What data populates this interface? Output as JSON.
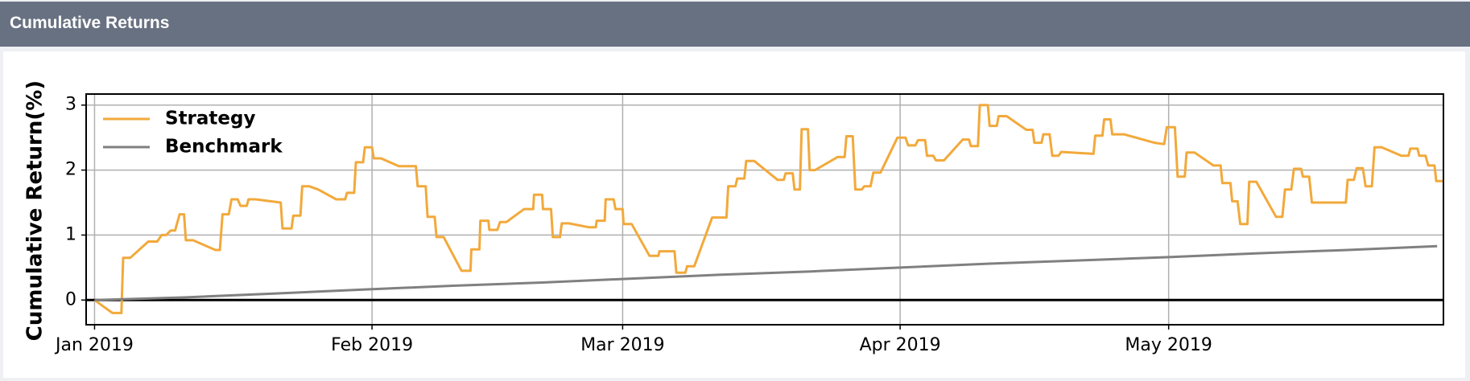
{
  "chart_data": {
    "type": "line",
    "title": "Cumulative Returns",
    "y_label": "Cumulative Return(%)",
    "xlim": [
      -0.94,
      150.7
    ],
    "ylim": [
      -0.38,
      3.17
    ],
    "xticks": [
      {
        "value": 0,
        "label": "Jan 2019"
      },
      {
        "value": 31,
        "label": "Feb 2019"
      },
      {
        "value": 59,
        "label": "Mar 2019"
      },
      {
        "value": 90,
        "label": "Apr 2019"
      },
      {
        "value": 120,
        "label": "May 2019"
      }
    ],
    "yticks": [
      0,
      1,
      2,
      3
    ],
    "grid": true,
    "hline": 0,
    "legend": "upper-left",
    "series": [
      {
        "name": "Strategy",
        "color": "#f2a93b",
        "x": [
          0,
          1,
          2,
          3,
          3.2,
          4,
          6,
          7,
          7.5,
          8,
          8.5,
          9,
          9.5,
          10,
          10.2,
          11,
          13.5,
          14,
          14.3,
          15,
          15.3,
          16,
          16.3,
          17,
          17.2,
          18,
          20.8,
          21,
          22,
          22.2,
          23,
          23.2,
          24,
          25,
          27,
          28,
          28.2,
          29,
          29.2,
          30,
          30.2,
          31,
          31.2,
          32,
          34,
          35.9,
          36.1,
          37,
          37.2,
          38,
          38.2,
          39,
          41,
          42,
          42.1,
          43,
          43.1,
          44,
          44.1,
          45,
          45.3,
          46,
          48,
          49,
          49.1,
          50,
          50.1,
          51,
          51.2,
          52,
          52.2,
          53,
          55.2,
          56,
          56.1,
          57,
          57.1,
          58,
          58.2,
          59,
          59.1,
          60,
          62,
          63,
          63.1,
          64,
          64.8,
          65,
          66,
          66.2,
          67,
          69,
          70.6,
          70.8,
          71.6,
          71.8,
          72.6,
          72.8,
          73.7,
          76.3,
          77,
          77.2,
          78,
          78.2,
          78.8,
          79,
          79.7,
          79.9,
          80.5,
          83,
          83.8,
          84,
          84.7,
          85,
          85.7,
          86,
          86.7,
          87,
          87.8,
          89.7,
          90.6,
          90.9,
          91.7,
          92,
          92.8,
          93,
          93.7,
          94,
          94.9,
          97,
          97.7,
          97.9,
          98.7,
          98.9,
          99.8,
          100,
          100.8,
          101,
          101.9,
          104.1,
          104.8,
          105,
          105.8,
          106,
          106.7,
          107,
          107.7,
          108,
          111.6,
          111.8,
          112.6,
          112.8,
          113.5,
          113.7,
          115,
          118.4,
          119.5,
          119.8,
          120.7,
          121,
          121.8,
          122,
          122.9,
          125,
          125.8,
          126,
          126.9,
          127.1,
          127.7,
          128,
          128.8,
          129,
          129.8,
          132,
          132.7,
          133,
          133.7,
          134,
          134.8,
          135,
          135.7,
          136,
          139.8,
          140,
          140.7,
          141,
          141.7,
          142,
          142.7,
          143,
          143.8,
          146,
          146.8,
          147,
          147.8,
          148,
          148.7,
          149,
          149.7,
          149.9,
          150.7
        ],
        "values": [
          0,
          -0.1,
          -0.2,
          -0.2,
          0.65,
          0.65,
          0.9,
          0.9,
          1.0,
          1.0,
          1.07,
          1.07,
          1.32,
          1.32,
          0.92,
          0.92,
          0.77,
          0.77,
          1.32,
          1.32,
          1.55,
          1.55,
          1.45,
          1.45,
          1.55,
          1.55,
          1.5,
          1.1,
          1.1,
          1.3,
          1.3,
          1.75,
          1.75,
          1.7,
          1.55,
          1.55,
          1.65,
          1.65,
          2.12,
          2.12,
          2.35,
          2.35,
          2.18,
          2.18,
          2.06,
          2.06,
          1.75,
          1.75,
          1.28,
          1.28,
          0.97,
          0.97,
          0.45,
          0.45,
          0.78,
          0.78,
          1.22,
          1.22,
          1.08,
          1.08,
          1.2,
          1.2,
          1.4,
          1.4,
          1.62,
          1.62,
          1.4,
          1.4,
          0.97,
          0.97,
          1.18,
          1.18,
          1.12,
          1.12,
          1.22,
          1.22,
          1.55,
          1.55,
          1.4,
          1.4,
          1.17,
          1.17,
          0.68,
          0.68,
          0.75,
          0.75,
          0.75,
          0.42,
          0.42,
          0.52,
          0.52,
          1.27,
          1.27,
          1.75,
          1.75,
          1.87,
          1.87,
          2.14,
          2.14,
          1.85,
          1.85,
          1.95,
          1.95,
          1.7,
          1.7,
          2.63,
          2.63,
          2.0,
          2.0,
          2.2,
          2.2,
          2.52,
          2.52,
          1.7,
          1.7,
          1.75,
          1.75,
          1.96,
          1.96,
          2.5,
          2.5,
          2.38,
          2.38,
          2.46,
          2.46,
          2.22,
          2.22,
          2.15,
          2.15,
          2.47,
          2.47,
          2.37,
          2.37,
          3.0,
          3.0,
          2.68,
          2.68,
          2.83,
          2.83,
          2.62,
          2.62,
          2.42,
          2.42,
          2.55,
          2.55,
          2.22,
          2.22,
          2.28,
          2.25,
          2.53,
          2.53,
          2.78,
          2.78,
          2.55,
          2.55,
          2.42,
          2.4,
          2.66,
          2.66,
          1.9,
          1.9,
          2.27,
          2.27,
          2.07,
          2.07,
          1.8,
          1.8,
          1.52,
          1.52,
          1.17,
          1.17,
          1.82,
          1.82,
          1.28,
          1.28,
          1.7,
          1.7,
          2.02,
          2.02,
          1.9,
          1.9,
          1.5,
          1.5,
          1.85,
          1.85,
          2.03,
          2.03,
          1.75,
          1.75,
          2.35,
          2.35,
          2.22,
          2.22,
          2.33,
          2.33,
          2.22,
          2.22,
          2.07,
          2.07,
          1.83,
          1.83
        ]
      },
      {
        "name": "Benchmark",
        "color": "#808080",
        "x": [
          0,
          10,
          20,
          30,
          40,
          50,
          60,
          70,
          80,
          90,
          100,
          110,
          120,
          130,
          140,
          150
        ],
        "values": [
          0,
          0.04,
          0.1,
          0.16,
          0.22,
          0.27,
          0.33,
          0.39,
          0.44,
          0.5,
          0.56,
          0.61,
          0.66,
          0.72,
          0.77,
          0.83
        ]
      }
    ]
  }
}
